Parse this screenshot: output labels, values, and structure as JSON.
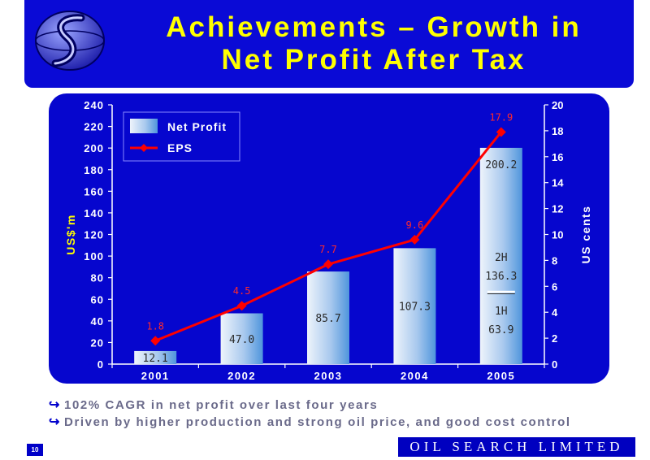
{
  "header": {
    "title_line1": "Achievements – Growth in",
    "title_line2": "Net Profit After Tax",
    "logo_icon": "oil-search-globe-icon"
  },
  "colors": {
    "banner": "#0a0ad6",
    "title": "#ffff00",
    "panel": "#0606ce",
    "eps_line": "#ff0000",
    "bar_light": "#dde8f5",
    "bar_dark": "#5aa0de"
  },
  "chart_data": {
    "type": "bar",
    "categories": [
      "2001",
      "2002",
      "2003",
      "2004",
      "2005"
    ],
    "ylabel": "US$'m",
    "y2label": "US cents",
    "ylim": [
      0,
      240
    ],
    "yticks": [
      "0",
      "20",
      "40",
      "60",
      "80",
      "100",
      "120",
      "140",
      "160",
      "180",
      "200",
      "220",
      "240"
    ],
    "y2lim": [
      0,
      20
    ],
    "y2ticks": [
      "0",
      "2",
      "4",
      "6",
      "8",
      "10",
      "12",
      "14",
      "16",
      "18",
      "20"
    ],
    "legend_position": "top-left",
    "series": [
      {
        "name": "Net Profit",
        "type": "bar",
        "axis": "left",
        "values": [
          12.1,
          47.0,
          85.7,
          107.3,
          200.2
        ],
        "labels": [
          "12.1",
          "47.0",
          "85.7",
          "107.3",
          "200.2"
        ]
      },
      {
        "name": "EPS",
        "type": "line",
        "axis": "right",
        "values": [
          1.8,
          4.5,
          7.7,
          9.6,
          17.9
        ],
        "labels": [
          "1.8",
          "4.5",
          "7.7",
          "9.6",
          "17.9"
        ]
      }
    ],
    "annotations": {
      "split_2h_label": "2H",
      "split_2h_value": "136.3",
      "split_1h_label": "1H",
      "split_1h_value": "63.9"
    }
  },
  "bullets": [
    "102% CAGR in net profit over last four years",
    "Driven by higher production and strong oil price, and good cost control"
  ],
  "bullet_icon": "right-hook-arrow-icon",
  "footer": {
    "page_number": "10",
    "company": "OIL SEARCH LIMITED"
  }
}
